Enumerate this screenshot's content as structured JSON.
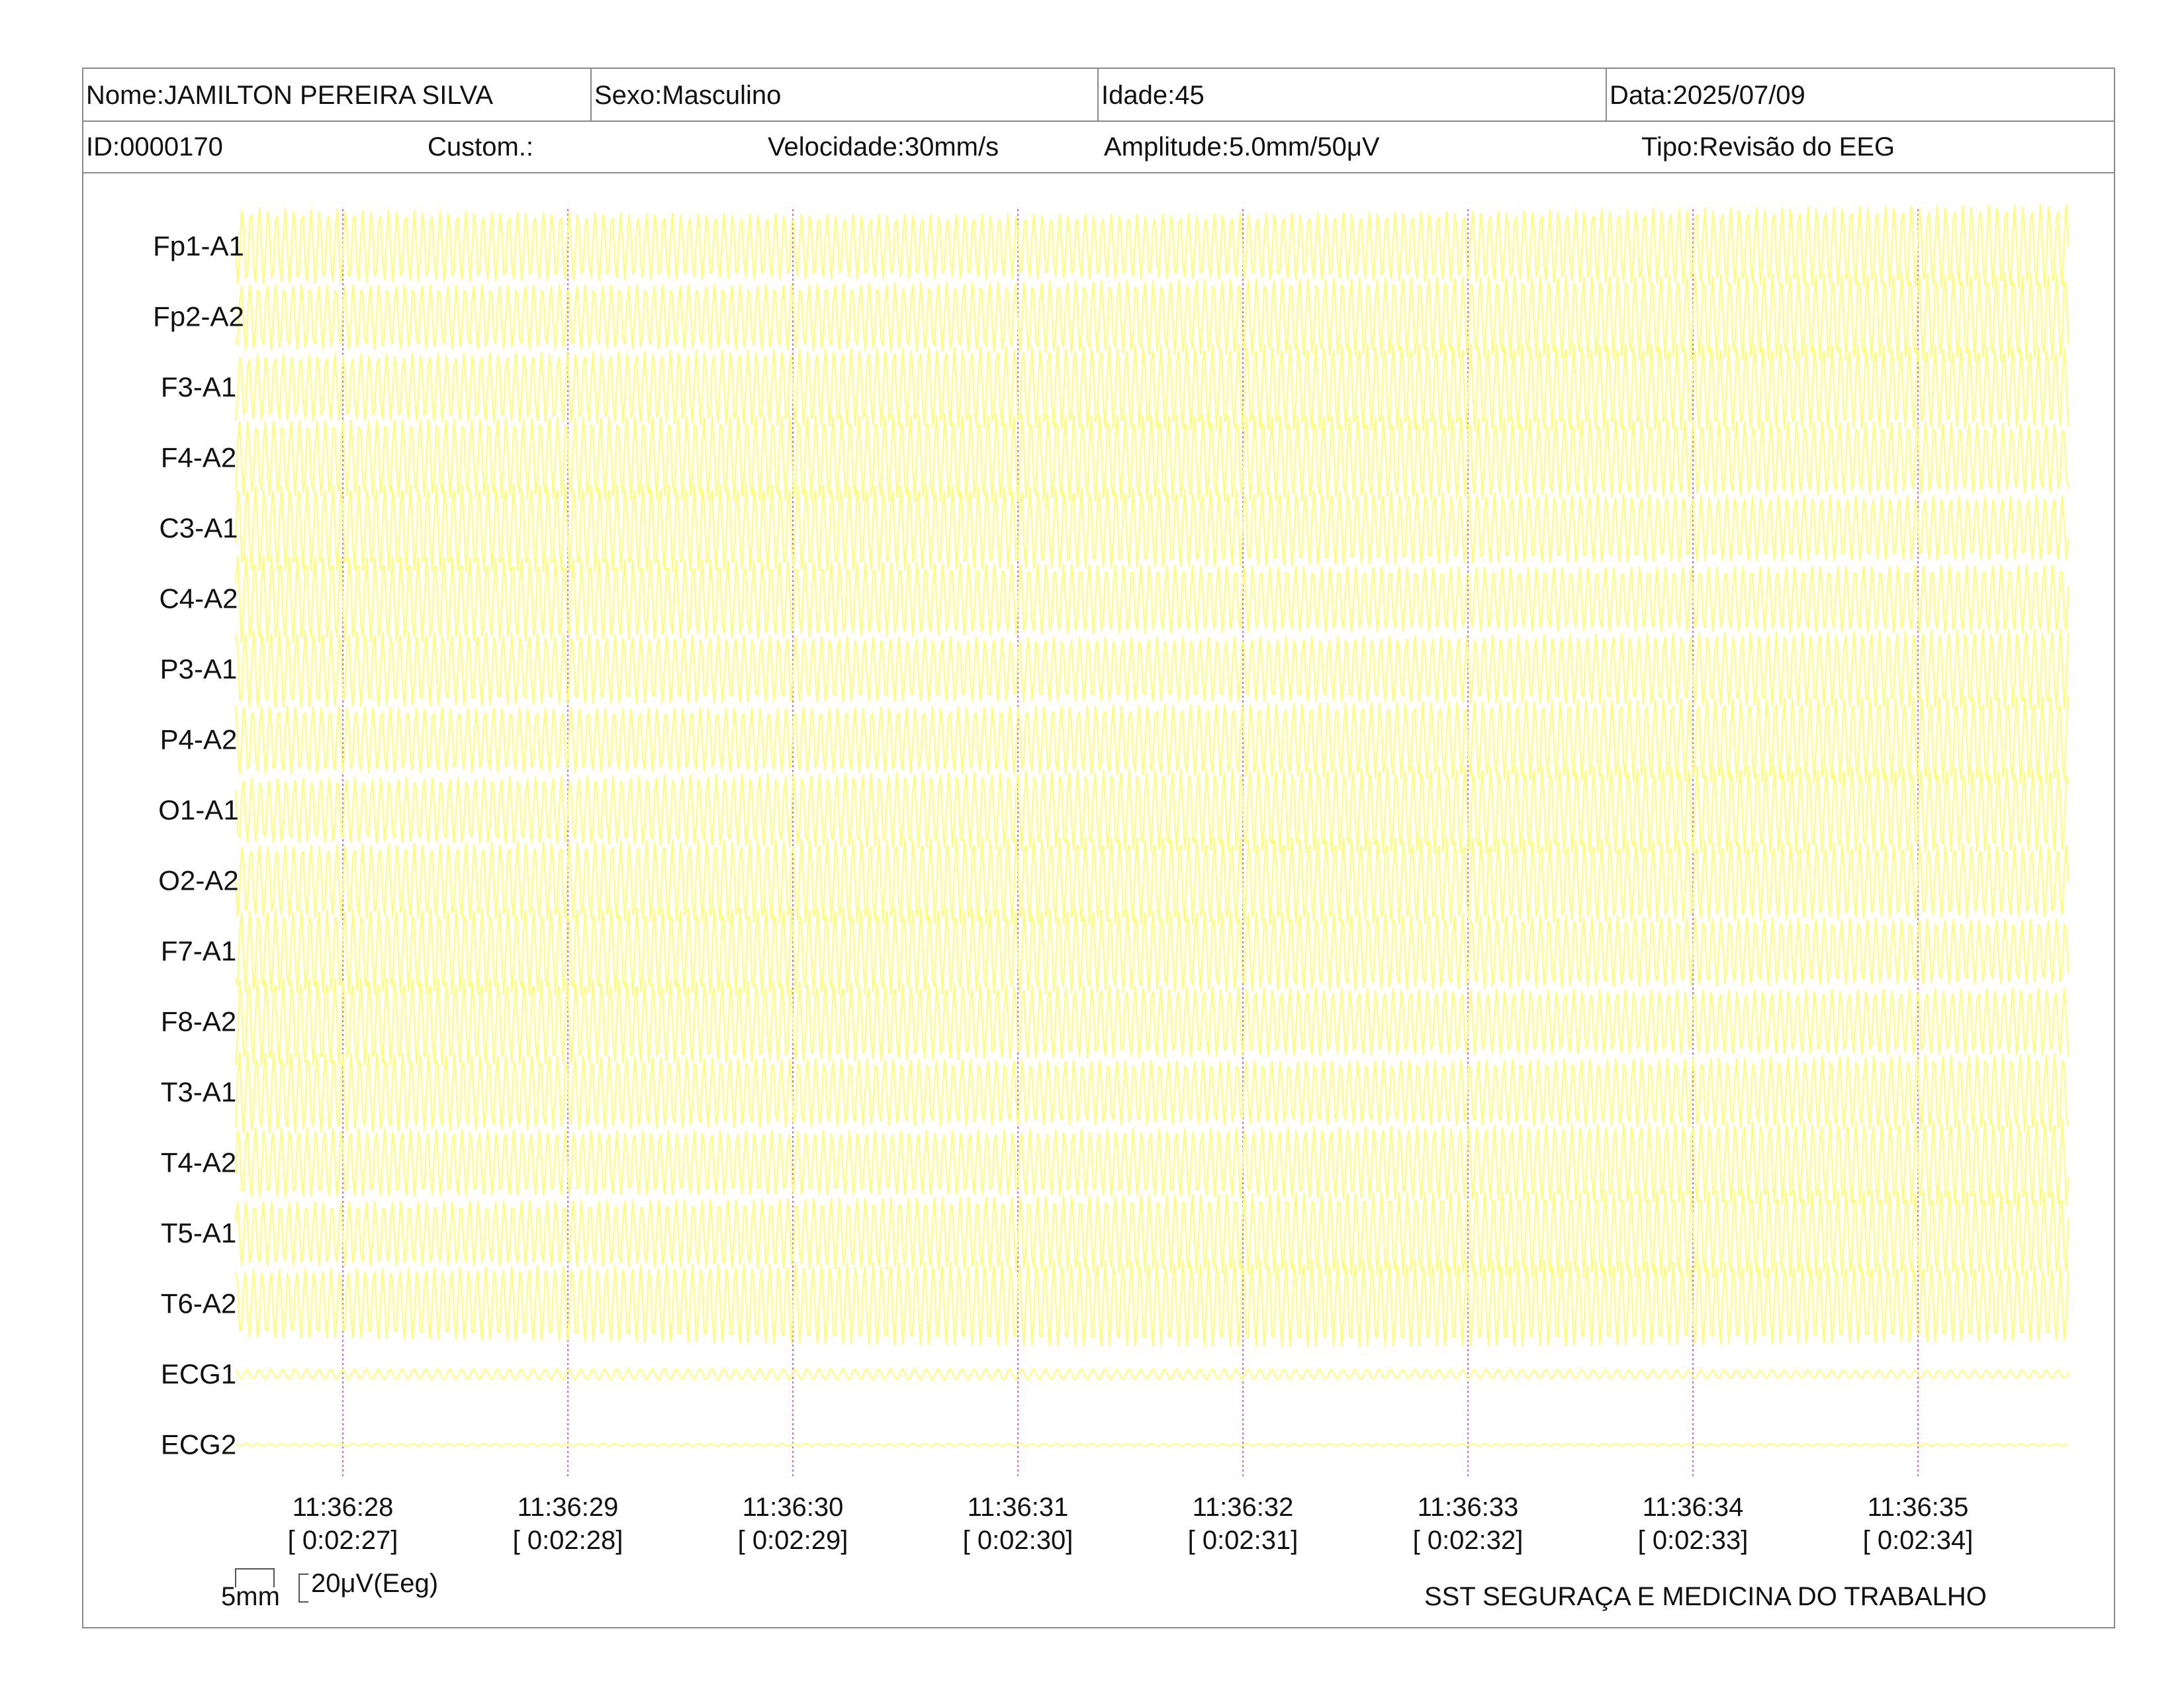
{
  "header": {
    "nome": "Nome:JAMILTON PEREIRA SILVA",
    "sexo": "Sexo:Masculino",
    "idade": "Idade:45",
    "data": "Data:2025/07/09",
    "id": "ID:0000170",
    "custom": "Custom.:",
    "velocidade": "Velocidade:30mm/s",
    "amplitude": "Amplitude:5.0mm/50μV",
    "tipo": "Tipo:Revisão do EEG"
  },
  "chart_data": {
    "type": "line",
    "channels": [
      "Fp1-A1",
      "Fp2-A2",
      "F3-A1",
      "F4-A2",
      "C3-A1",
      "C4-A2",
      "P3-A1",
      "P4-A2",
      "O1-A1",
      "O2-A2",
      "F7-A1",
      "F8-A2",
      "T3-A1",
      "T4-A2",
      "T5-A1",
      "T6-A2",
      "ECG1",
      "ECG2"
    ],
    "time_ticks": [
      {
        "time": "11:36:28",
        "elapsed": "[ 0:02:27]"
      },
      {
        "time": "11:36:29",
        "elapsed": "[ 0:02:28]"
      },
      {
        "time": "11:36:30",
        "elapsed": "[ 0:02:29]"
      },
      {
        "time": "11:36:31",
        "elapsed": "[ 0:02:30]"
      },
      {
        "time": "11:36:32",
        "elapsed": "[ 0:02:31]"
      },
      {
        "time": "11:36:33",
        "elapsed": "[ 0:02:32]"
      },
      {
        "time": "11:36:34",
        "elapsed": "[ 0:02:33]"
      },
      {
        "time": "11:36:35",
        "elapsed": "[ 0:02:34]"
      }
    ],
    "trace_color": "#ffff66",
    "second_marker_color": "#cc66cc",
    "grid": false
  },
  "scale": {
    "time_bar": "5mm",
    "amplitude_bar": "20μV(Eeg)"
  },
  "footer": {
    "organization": "SST SEGURAÇA E MEDICINA DO TRABALHO"
  }
}
